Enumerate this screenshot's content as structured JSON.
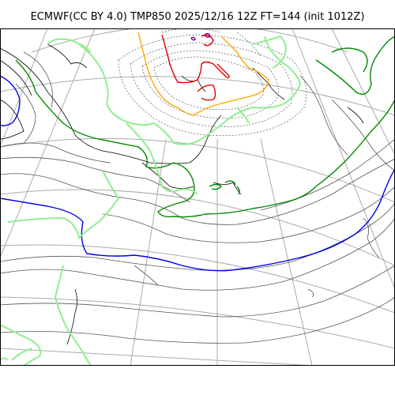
{
  "title": "ECMWF(CC BY 4.0) TMP850 2025/12/16 12Z FT=144 (init 1012Z)",
  "colors": {
    "background": "#ffffff",
    "frame": "#000000",
    "graticule": "#aaaaaa",
    "coast": "#000000",
    "isotherm_minor": "#555555",
    "isotherm_dashed": "#555555",
    "isotherm_0C": "#0000ee",
    "isotherm_m6C": "#008800",
    "isotherm_m12C": "#90ee90",
    "isotherm_m18C": "#ffa500",
    "isotherm_m24C": "#dd0000",
    "isotherm_m30C": "#880088"
  }
}
